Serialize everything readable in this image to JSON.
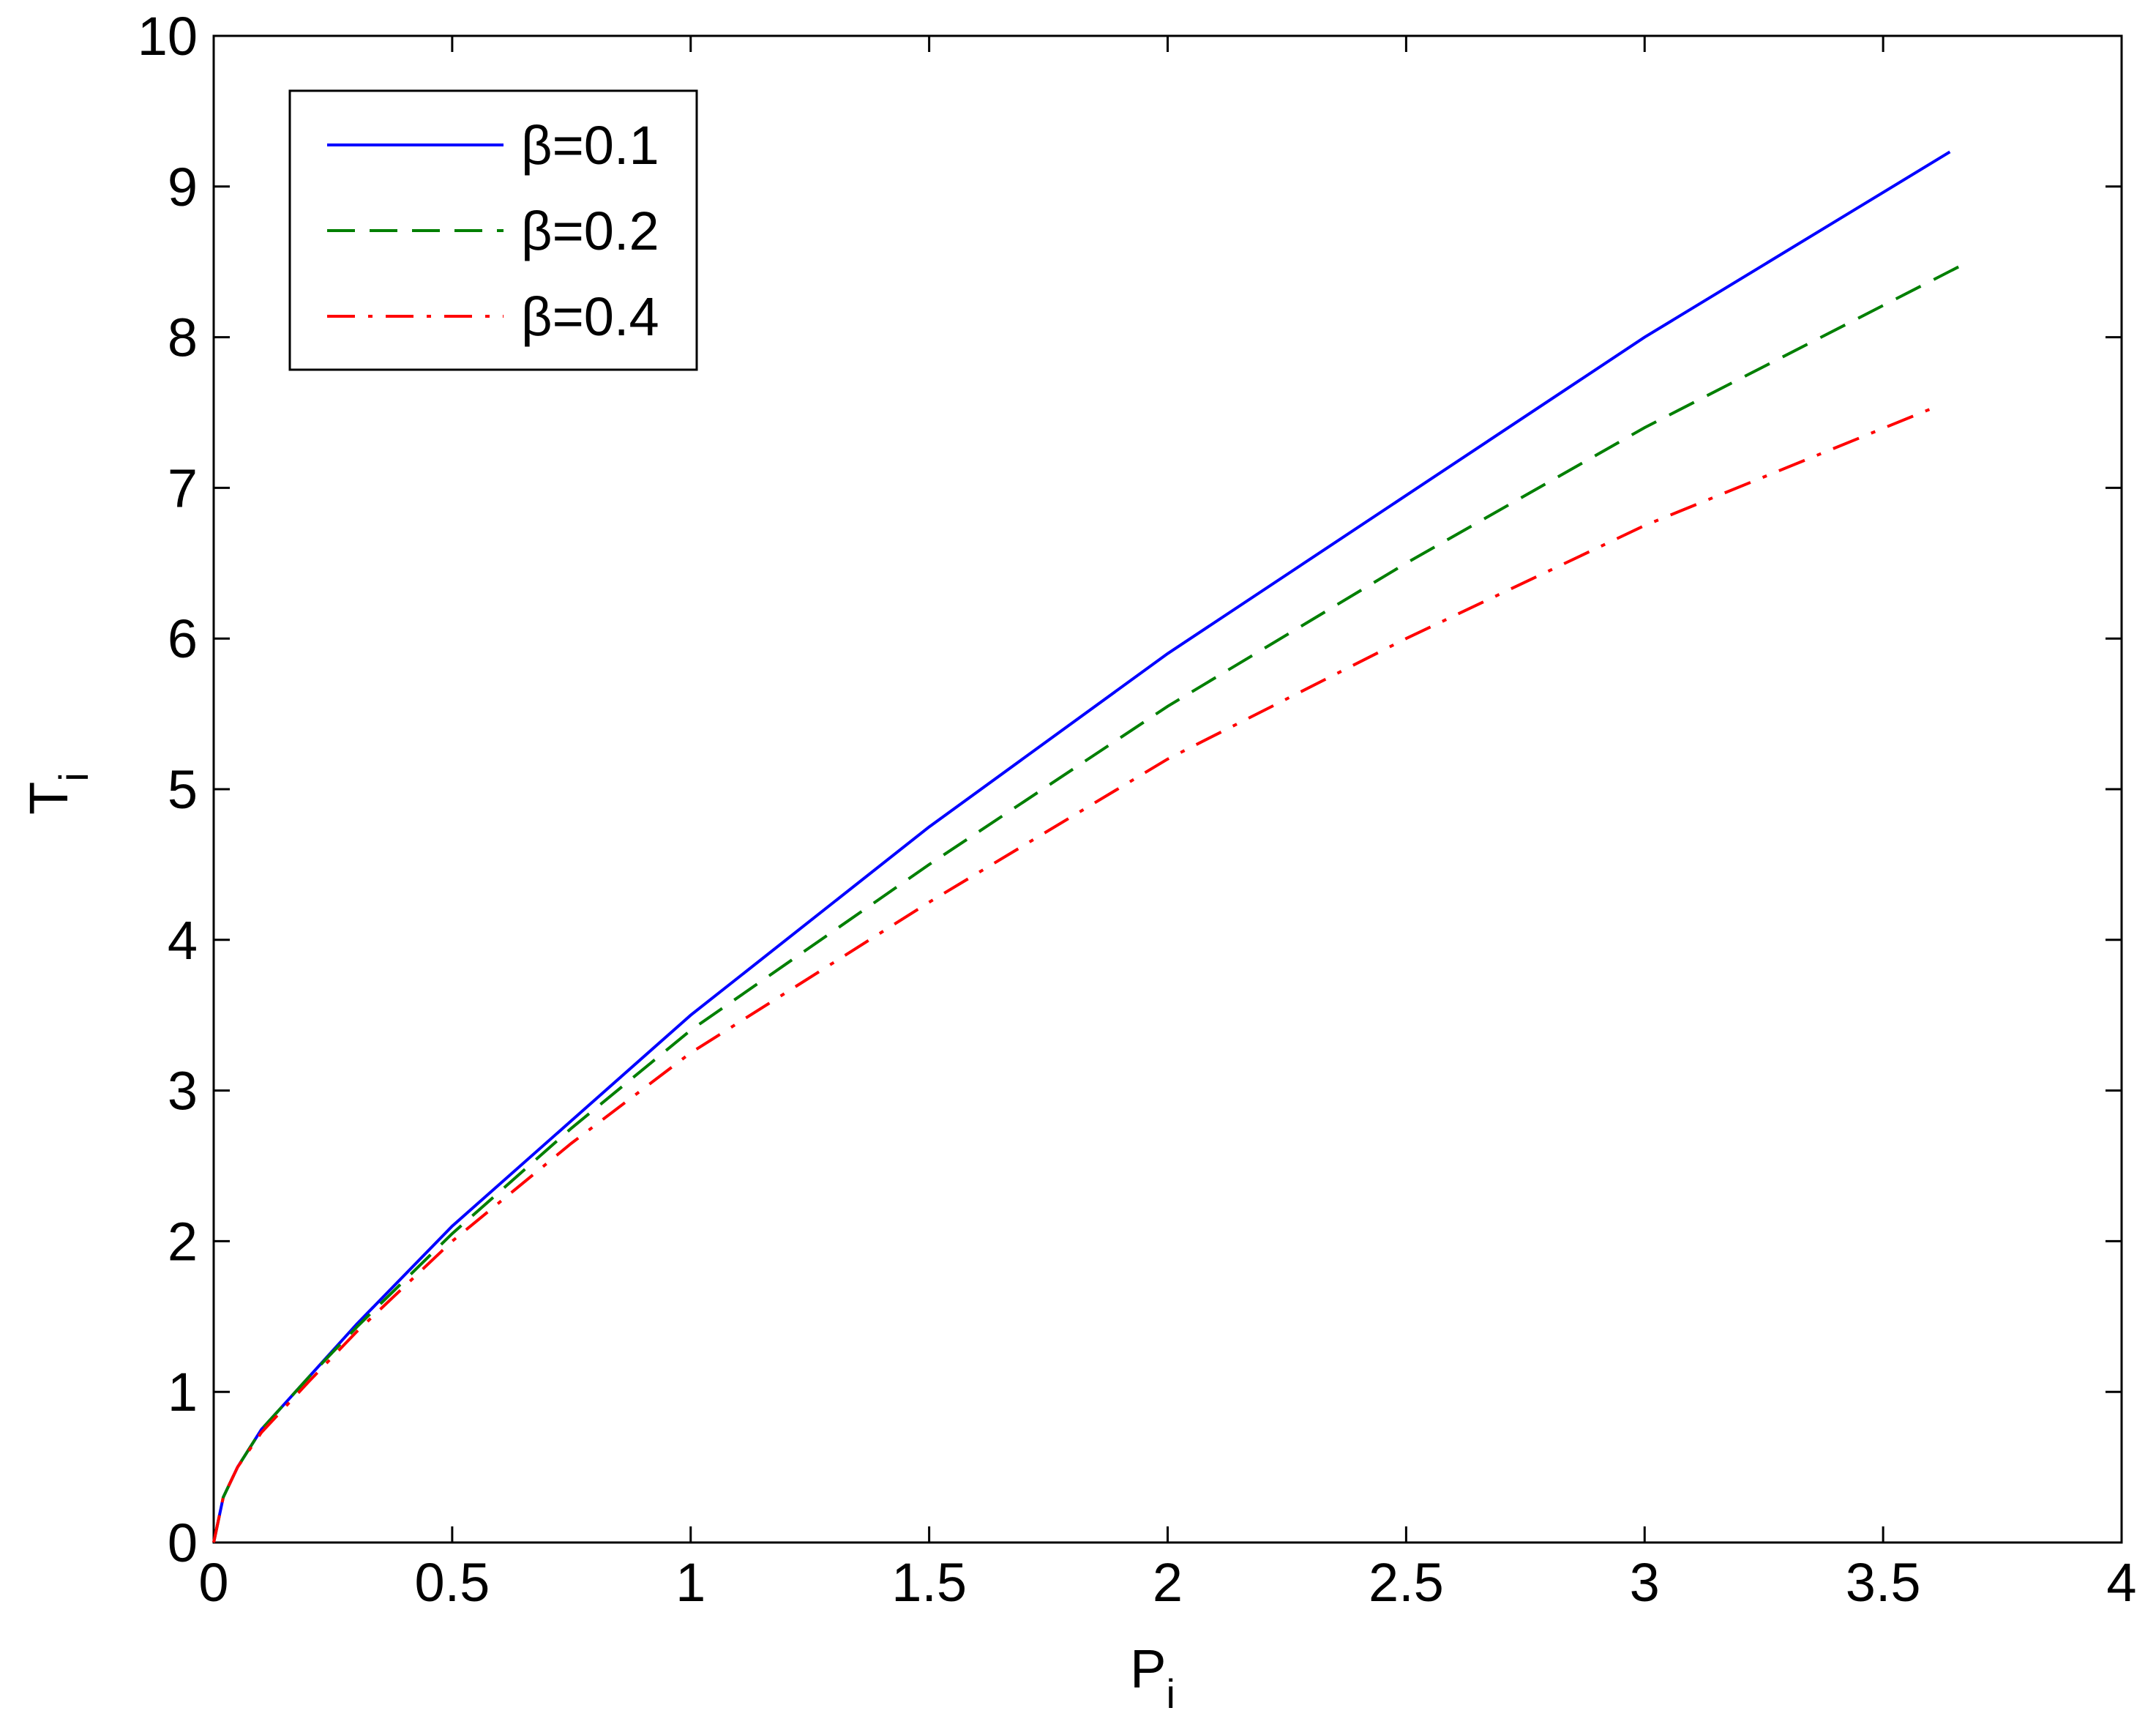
{
  "chart_data": {
    "type": "line",
    "xlabel": "P",
    "xlabel_sub": "i",
    "ylabel": "T",
    "ylabel_sub": "i",
    "xlim": [
      0,
      4
    ],
    "ylim": [
      0,
      10
    ],
    "xticks": [
      0,
      0.5,
      1,
      1.5,
      2,
      2.5,
      3,
      3.5,
      4
    ],
    "yticks": [
      0,
      1,
      2,
      3,
      4,
      5,
      6,
      7,
      8,
      9,
      10
    ],
    "grid": false,
    "legend": "upper left",
    "series": [
      {
        "name": "β=0.1",
        "color": "#0000ff",
        "style": "solid",
        "x": [
          0,
          0.02,
          0.05,
          0.1,
          0.2,
          0.3,
          0.5,
          0.75,
          1,
          1.5,
          2,
          2.5,
          3,
          3.64
        ],
        "values": [
          0,
          0.3,
          0.5,
          0.75,
          1.1,
          1.45,
          2.1,
          2.8,
          3.5,
          4.75,
          5.9,
          6.95,
          8.0,
          9.23
        ]
      },
      {
        "name": "β=0.2",
        "color": "#007f00",
        "style": "dashed",
        "x": [
          0,
          0.02,
          0.05,
          0.1,
          0.2,
          0.3,
          0.5,
          0.75,
          1,
          1.5,
          2,
          2.5,
          3,
          3.66
        ],
        "values": [
          0,
          0.3,
          0.5,
          0.75,
          1.1,
          1.43,
          2.05,
          2.75,
          3.4,
          4.5,
          5.55,
          6.5,
          7.4,
          8.47
        ]
      },
      {
        "name": "β=0.4",
        "color": "#ff0000",
        "style": "dashdot",
        "x": [
          0,
          0.02,
          0.05,
          0.1,
          0.2,
          0.3,
          0.5,
          0.75,
          1,
          1.5,
          2,
          2.5,
          3,
          3.62
        ],
        "values": [
          0,
          0.3,
          0.5,
          0.73,
          1.07,
          1.4,
          2.0,
          2.65,
          3.25,
          4.25,
          5.2,
          6.0,
          6.75,
          7.55
        ]
      }
    ]
  }
}
